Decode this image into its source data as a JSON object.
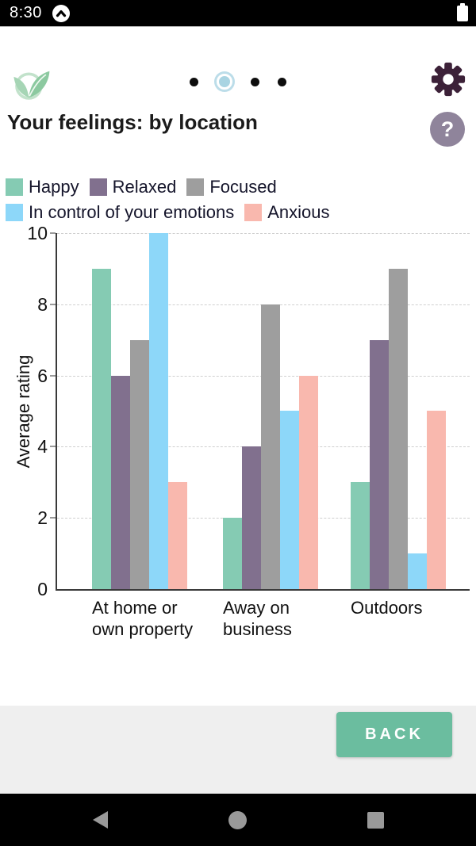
{
  "status_bar": {
    "time": "8:30"
  },
  "header": {
    "dots": [
      "inactive",
      "active",
      "inactive",
      "inactive"
    ]
  },
  "page": {
    "title": "Your feelings: by location"
  },
  "chart_data": {
    "type": "bar",
    "categories": [
      "At home or\nown property",
      "Away on\nbusiness",
      "Outdoors"
    ],
    "series": [
      {
        "name": "Happy",
        "color": "#85cbb3",
        "values": [
          9,
          2,
          3
        ]
      },
      {
        "name": "Relaxed",
        "color": "#81708e",
        "values": [
          6,
          4,
          7
        ]
      },
      {
        "name": "Focused",
        "color": "#9e9e9e",
        "values": [
          7,
          8,
          9
        ]
      },
      {
        "name": "In control of your emotions",
        "color": "#8dd7f9",
        "values": [
          10,
          5,
          1
        ]
      },
      {
        "name": "Anxious",
        "color": "#f9b8ae",
        "values": [
          3,
          6,
          5
        ]
      }
    ],
    "ylabel": "Average rating",
    "xlabel": "",
    "ylim": [
      0,
      10
    ],
    "yticks": [
      0,
      2,
      4,
      6,
      8,
      10
    ],
    "grid": true,
    "legend_position": "top-left"
  },
  "footer": {
    "back_label": "BACK"
  },
  "colors": {
    "accent_green": "#6bbd9f",
    "gear_purple": "#3c2138",
    "help_circle": "#8f849b",
    "active_dot": "#a9d4e2",
    "active_dot_ring": "#bcdde9",
    "footer_bg": "#efefef"
  }
}
